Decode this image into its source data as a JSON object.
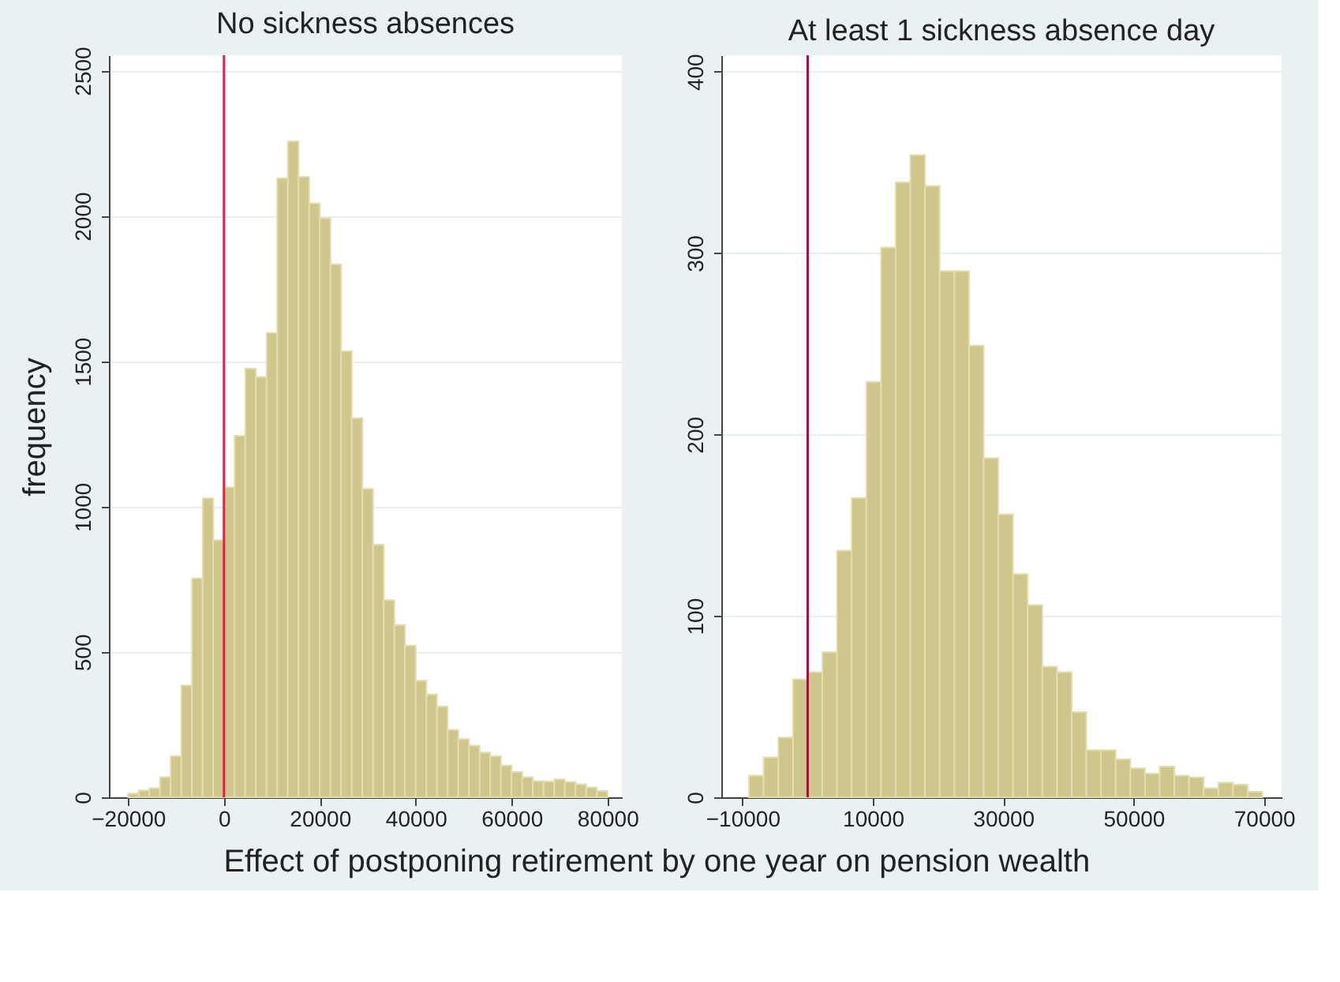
{
  "chart_data": [
    {
      "type": "histogram",
      "title": "No sickness absences",
      "ylabel": "frequency",
      "xlabel": "Effect of postponing retirement by one year on pension wealth",
      "color": "#cec68a",
      "bins": [
        -20000,
        -17778,
        -15556,
        -13333,
        -11111,
        -8889,
        -6667,
        -4444,
        -2222,
        0,
        2222,
        4444,
        6667,
        8889,
        11111,
        13333,
        15556,
        17778,
        20000,
        22222,
        24444,
        26667,
        28889,
        31111,
        33333,
        35556,
        37778,
        40000,
        42222,
        44444,
        46667,
        48889,
        51111,
        53333,
        55556,
        57778,
        60000,
        62222,
        64444,
        66667,
        68889,
        71111,
        73333,
        75556,
        77778,
        80000
      ],
      "values": [
        13,
        24,
        31,
        69,
        141,
        385,
        753,
        1029,
        885,
        1067,
        1244,
        1475,
        1446,
        1598,
        2130,
        2257,
        2135,
        2044,
        1992,
        1834,
        1535,
        1304,
        1061,
        869,
        678,
        593,
        522,
        401,
        354,
        312,
        232,
        200,
        178,
        154,
        141,
        109,
        87,
        69,
        56,
        54,
        62,
        53,
        45,
        34,
        22
      ],
      "xlim": [
        -24000,
        83000
      ],
      "xticks": [
        -20000,
        0,
        20000,
        40000,
        60000,
        80000
      ],
      "ylim": [
        0,
        2553
      ],
      "yticks": [
        0,
        500,
        1000,
        1500,
        2000,
        2500
      ],
      "grid": "y",
      "ref_lines": [
        {
          "axis": "x",
          "value": 0,
          "color": "#e0204a"
        }
      ]
    },
    {
      "type": "histogram",
      "title": "At least 1 sickness absence day",
      "color": "#cec68a",
      "bins": [
        -9000,
        -6750,
        -4500,
        -2250,
        0,
        2250,
        4500,
        6750,
        9000,
        11250,
        13500,
        15750,
        18000,
        20250,
        22500,
        24750,
        27000,
        29250,
        31500,
        33750,
        36000,
        38250,
        40500,
        42750,
        45000,
        47250,
        49500,
        51750,
        54000,
        56250,
        58500,
        60750,
        63000,
        65250,
        67500,
        69750
      ],
      "values": [
        12,
        22,
        33,
        65,
        69,
        80,
        136,
        165,
        229,
        303,
        339,
        354,
        337,
        290,
        290,
        249,
        187,
        156,
        123,
        106,
        72,
        69,
        47,
        26,
        26,
        21,
        16,
        13,
        17,
        12,
        11,
        5,
        8,
        7,
        3
      ],
      "xlim": [
        -13250,
        72700
      ],
      "xticks": [
        -10000,
        10000,
        30000,
        50000,
        70000
      ],
      "ylim": [
        0,
        409
      ],
      "yticks": [
        0,
        100,
        200,
        300,
        400
      ],
      "grid": "y",
      "ref_lines": [
        {
          "axis": "x",
          "value": 0,
          "color": "#a0103a"
        }
      ]
    }
  ]
}
